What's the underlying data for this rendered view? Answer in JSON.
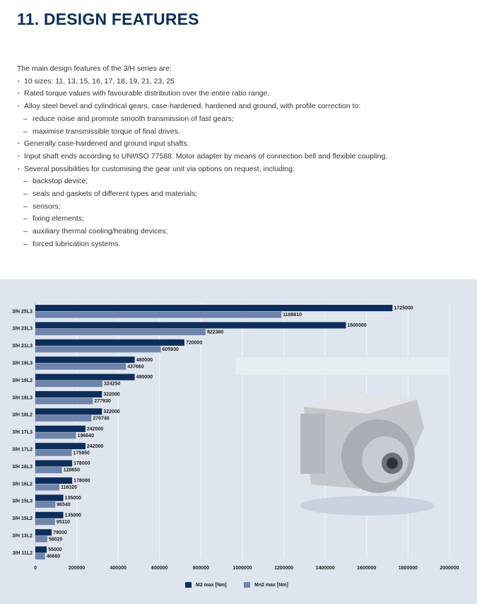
{
  "header": {
    "title": "11. DESIGN FEATURES"
  },
  "intro": "The main design features of the 3/H series are:",
  "items": [
    {
      "text": "10 sizes: 11, 13, 15, 16, 17, 18, 19, 21, 23, 25",
      "subitems": []
    },
    {
      "text": "Rated torque values with favourable distribution over the entire ratio range.",
      "subitems": []
    },
    {
      "text": "Alloy steel bevel and cylindrical gears, case-hardened, hardened and ground, with profile correction to:",
      "subitems": [
        "reduce noise and promote smooth transmission of fast gears;",
        "maximise transmissible torque of final drives."
      ]
    },
    {
      "text": "Generally case-hardened and ground input shafts.",
      "subitems": []
    },
    {
      "text": "Input shaft ends according to UNI/ISO 77588. Motor adapter by means of connection bell and flexible coupling.",
      "subitems": []
    },
    {
      "text": "Several possibilities for customising the gear unit via options on request, including:",
      "subitems": [
        "backstop device;",
        "seals and gaskets of different types and materials;",
        "sensors;",
        "fixing elements;",
        "auxiliary thermal cooling/heating devices;",
        "forced lubrication systems."
      ]
    }
  ],
  "chart_data": {
    "type": "bar",
    "orientation": "horizontal",
    "categories": [
      "3/H 25L3",
      "3/H 23L3",
      "3/H 21L3",
      "3/H 19L3",
      "3/H 19L2",
      "3/H 18L3",
      "3/H 18L2",
      "3/H 17L3",
      "3/H 17L2",
      "3/H 16L3",
      "3/H 16L2",
      "3/H 15L3",
      "3/H 15L2",
      "3/H 13L2",
      "3/H 11L2"
    ],
    "series": [
      {
        "name": "M2 max [Nm]",
        "color": "#0d2e5a",
        "values": [
          1725000,
          1500000,
          720000,
          480000,
          480000,
          322000,
          322000,
          242000,
          242000,
          178000,
          178000,
          135000,
          135000,
          79000,
          55000
        ]
      },
      {
        "name": "Mn2 max [Nm]",
        "color": "#6e84aa",
        "values": [
          1188610,
          822380,
          605930,
          437660,
          324250,
          277930,
          270740,
          196640,
          175950,
          128650,
          116320,
          96540,
          95110,
          58020,
          46660
        ]
      }
    ],
    "xlim": [
      0,
      2000000
    ],
    "xticks": [
      0,
      200000,
      400000,
      600000,
      800000,
      1000000,
      1200000,
      1400000,
      1600000,
      1800000,
      2000000
    ],
    "grid": true,
    "legend": "bottom"
  }
}
